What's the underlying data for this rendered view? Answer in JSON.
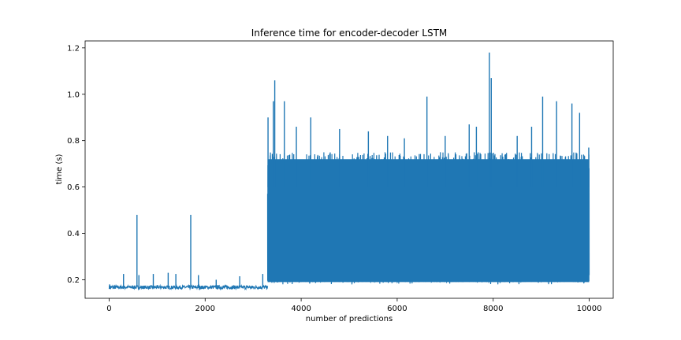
{
  "chart_data": {
    "type": "line",
    "title": "Inference time for encoder-decoder LSTM",
    "xlabel": "number of predictions",
    "ylabel": "time (s)",
    "xlim": [
      -500,
      10500
    ],
    "ylim": [
      0.12,
      1.23
    ],
    "xticks": [
      0,
      2000,
      4000,
      6000,
      8000,
      10000
    ],
    "yticks": [
      0.2,
      0.4,
      0.6,
      0.8,
      1.0,
      1.2
    ],
    "ytick_labels": [
      "0.2",
      "0.4",
      "0.6",
      "0.8",
      "1.0",
      "1.2"
    ],
    "grid": false,
    "line_color": "#1f77b4",
    "series": [
      {
        "segments": [
          {
            "x_range": [
              0,
              3300
            ],
            "baseline": 0.17,
            "low": 0.16,
            "high": 0.175
          },
          {
            "x_range": [
              3300,
              10000
            ],
            "baseline": 0.19,
            "low": 0.18,
            "high": 0.72
          }
        ],
        "spikes": [
          {
            "x": 10,
            "y": 0.18
          },
          {
            "x": 300,
            "y": 0.225
          },
          {
            "x": 580,
            "y": 0.48
          },
          {
            "x": 620,
            "y": 0.22
          },
          {
            "x": 920,
            "y": 0.225
          },
          {
            "x": 1230,
            "y": 0.23
          },
          {
            "x": 1390,
            "y": 0.225
          },
          {
            "x": 1700,
            "y": 0.48
          },
          {
            "x": 1860,
            "y": 0.22
          },
          {
            "x": 2230,
            "y": 0.2
          },
          {
            "x": 2720,
            "y": 0.215
          },
          {
            "x": 3200,
            "y": 0.225
          },
          {
            "x": 3310,
            "y": 0.9
          },
          {
            "x": 3420,
            "y": 0.97
          },
          {
            "x": 3450,
            "y": 1.06
          },
          {
            "x": 3650,
            "y": 0.97
          },
          {
            "x": 3900,
            "y": 0.86
          },
          {
            "x": 4200,
            "y": 0.9
          },
          {
            "x": 4800,
            "y": 0.85
          },
          {
            "x": 5400,
            "y": 0.84
          },
          {
            "x": 5800,
            "y": 0.82
          },
          {
            "x": 6150,
            "y": 0.81
          },
          {
            "x": 6620,
            "y": 0.99
          },
          {
            "x": 7000,
            "y": 0.82
          },
          {
            "x": 7500,
            "y": 0.87
          },
          {
            "x": 7650,
            "y": 0.86
          },
          {
            "x": 7920,
            "y": 1.18
          },
          {
            "x": 7960,
            "y": 1.07
          },
          {
            "x": 8500,
            "y": 0.82
          },
          {
            "x": 8800,
            "y": 0.86
          },
          {
            "x": 9030,
            "y": 0.99
          },
          {
            "x": 9320,
            "y": 0.97
          },
          {
            "x": 9640,
            "y": 0.96
          },
          {
            "x": 9800,
            "y": 0.92
          },
          {
            "x": 9990,
            "y": 0.77
          }
        ]
      }
    ]
  }
}
